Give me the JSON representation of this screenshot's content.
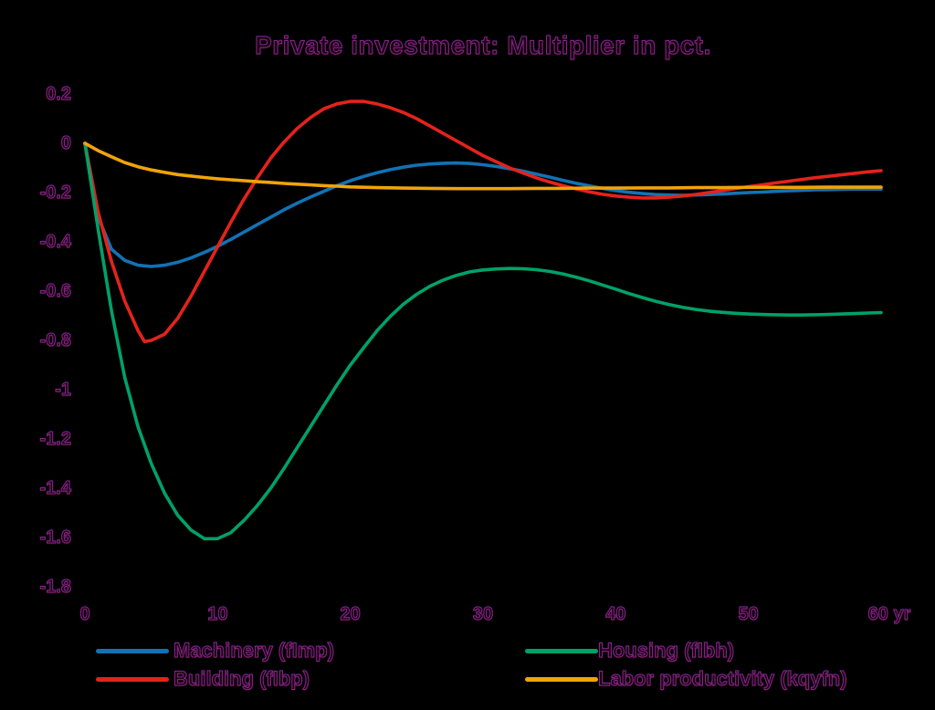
{
  "chart_data": {
    "type": "line",
    "title": "Private investment: Multiplier in pct.",
    "xlabel": "",
    "ylabel": "",
    "x_unit": "yr",
    "xlim": [
      0,
      60
    ],
    "ylim": [
      -1.8,
      0.2
    ],
    "x_ticks": [
      0,
      10,
      20,
      30,
      40,
      50,
      60
    ],
    "y_ticks": [
      0.2,
      0,
      -0.2,
      -0.4,
      -0.6,
      -0.8,
      -1,
      -1.2,
      -1.4,
      -1.6,
      -1.8
    ],
    "grid": false,
    "background": "#000000",
    "text_outline_color": "#872285",
    "legend_position": "bottom-two-columns",
    "series": [
      {
        "id": "machinery-fimp",
        "name": "Machinery (fImp)",
        "color": "#1272b4",
        "points": [
          [
            0,
            0
          ],
          [
            1,
            -0.3
          ],
          [
            2,
            -0.43
          ],
          [
            3,
            -0.475
          ],
          [
            4,
            -0.495
          ],
          [
            5,
            -0.5
          ],
          [
            6,
            -0.495
          ],
          [
            7,
            -0.483
          ],
          [
            8,
            -0.465
          ],
          [
            9,
            -0.443
          ],
          [
            10,
            -0.418
          ],
          [
            11,
            -0.39
          ],
          [
            12,
            -0.36
          ],
          [
            13,
            -0.33
          ],
          [
            14,
            -0.3
          ],
          [
            15,
            -0.27
          ],
          [
            16,
            -0.243
          ],
          [
            17,
            -0.218
          ],
          [
            18,
            -0.195
          ],
          [
            19,
            -0.172
          ],
          [
            20,
            -0.152
          ],
          [
            21,
            -0.135
          ],
          [
            22,
            -0.12
          ],
          [
            23,
            -0.107
          ],
          [
            24,
            -0.097
          ],
          [
            25,
            -0.089
          ],
          [
            26,
            -0.084
          ],
          [
            27,
            -0.081
          ],
          [
            28,
            -0.08
          ],
          [
            29,
            -0.082
          ],
          [
            30,
            -0.087
          ],
          [
            31,
            -0.094
          ],
          [
            32,
            -0.103
          ],
          [
            33,
            -0.113
          ],
          [
            34,
            -0.125
          ],
          [
            35,
            -0.137
          ],
          [
            36,
            -0.15
          ],
          [
            37,
            -0.162
          ],
          [
            38,
            -0.173
          ],
          [
            39,
            -0.183
          ],
          [
            40,
            -0.192
          ],
          [
            41,
            -0.199
          ],
          [
            42,
            -0.204
          ],
          [
            43,
            -0.208
          ],
          [
            44,
            -0.21
          ],
          [
            45,
            -0.211
          ],
          [
            46,
            -0.21
          ],
          [
            47,
            -0.208
          ],
          [
            48,
            -0.206
          ],
          [
            49,
            -0.203
          ],
          [
            50,
            -0.2
          ],
          [
            51,
            -0.198
          ],
          [
            52,
            -0.195
          ],
          [
            53,
            -0.193
          ],
          [
            54,
            -0.191
          ],
          [
            55,
            -0.189
          ],
          [
            56,
            -0.188
          ],
          [
            57,
            -0.187
          ],
          [
            58,
            -0.186
          ],
          [
            59,
            -0.186
          ],
          [
            60,
            -0.186
          ]
        ]
      },
      {
        "id": "building-fibp",
        "name": "Building (fIbp)",
        "color": "#e3231b",
        "points": [
          [
            0,
            0
          ],
          [
            1,
            -0.28
          ],
          [
            2,
            -0.48
          ],
          [
            3,
            -0.64
          ],
          [
            4,
            -0.76
          ],
          [
            4.5,
            -0.805
          ],
          [
            5,
            -0.8
          ],
          [
            6,
            -0.775
          ],
          [
            7,
            -0.71
          ],
          [
            8,
            -0.62
          ],
          [
            9,
            -0.52
          ],
          [
            10,
            -0.42
          ],
          [
            11,
            -0.32
          ],
          [
            12,
            -0.225
          ],
          [
            13,
            -0.14
          ],
          [
            14,
            -0.06
          ],
          [
            15,
            0.005
          ],
          [
            16,
            0.06
          ],
          [
            17,
            0.105
          ],
          [
            18,
            0.14
          ],
          [
            19,
            0.16
          ],
          [
            20,
            0.17
          ],
          [
            21,
            0.17
          ],
          [
            22,
            0.16
          ],
          [
            23,
            0.145
          ],
          [
            24,
            0.125
          ],
          [
            25,
            0.1
          ],
          [
            26,
            0.07
          ],
          [
            27,
            0.04
          ],
          [
            28,
            0.01
          ],
          [
            29,
            -0.02
          ],
          [
            30,
            -0.05
          ],
          [
            31,
            -0.075
          ],
          [
            32,
            -0.1
          ],
          [
            33,
            -0.12
          ],
          [
            34,
            -0.14
          ],
          [
            35,
            -0.157
          ],
          [
            36,
            -0.172
          ],
          [
            37,
            -0.185
          ],
          [
            38,
            -0.197
          ],
          [
            39,
            -0.207
          ],
          [
            40,
            -0.214
          ],
          [
            41,
            -0.219
          ],
          [
            42,
            -0.222
          ],
          [
            43,
            -0.222
          ],
          [
            44,
            -0.219
          ],
          [
            45,
            -0.214
          ],
          [
            46,
            -0.208
          ],
          [
            47,
            -0.2
          ],
          [
            48,
            -0.192
          ],
          [
            49,
            -0.184
          ],
          [
            50,
            -0.176
          ],
          [
            51,
            -0.169
          ],
          [
            52,
            -0.161
          ],
          [
            53,
            -0.154
          ],
          [
            54,
            -0.147
          ],
          [
            55,
            -0.14
          ],
          [
            56,
            -0.134
          ],
          [
            57,
            -0.128
          ],
          [
            58,
            -0.122
          ],
          [
            59,
            -0.116
          ],
          [
            60,
            -0.111
          ]
        ]
      },
      {
        "id": "housing-fibh",
        "name": "Housing (fIbh)",
        "color": "#00a169",
        "points": [
          [
            0,
            0
          ],
          [
            1,
            -0.35
          ],
          [
            2,
            -0.68
          ],
          [
            3,
            -0.95
          ],
          [
            4,
            -1.15
          ],
          [
            5,
            -1.3
          ],
          [
            6,
            -1.42
          ],
          [
            7,
            -1.51
          ],
          [
            8,
            -1.57
          ],
          [
            9,
            -1.605
          ],
          [
            10,
            -1.605
          ],
          [
            11,
            -1.58
          ],
          [
            12,
            -1.53
          ],
          [
            13,
            -1.47
          ],
          [
            14,
            -1.4
          ],
          [
            15,
            -1.32
          ],
          [
            16,
            -1.235
          ],
          [
            17,
            -1.15
          ],
          [
            18,
            -1.065
          ],
          [
            19,
            -0.98
          ],
          [
            20,
            -0.9
          ],
          [
            21,
            -0.83
          ],
          [
            22,
            -0.762
          ],
          [
            23,
            -0.703
          ],
          [
            24,
            -0.653
          ],
          [
            25,
            -0.613
          ],
          [
            26,
            -0.58
          ],
          [
            27,
            -0.555
          ],
          [
            28,
            -0.536
          ],
          [
            29,
            -0.522
          ],
          [
            30,
            -0.514
          ],
          [
            31,
            -0.51
          ],
          [
            32,
            -0.508
          ],
          [
            33,
            -0.509
          ],
          [
            34,
            -0.513
          ],
          [
            35,
            -0.52
          ],
          [
            36,
            -0.53
          ],
          [
            37,
            -0.543
          ],
          [
            38,
            -0.558
          ],
          [
            39,
            -0.575
          ],
          [
            40,
            -0.592
          ],
          [
            41,
            -0.61
          ],
          [
            42,
            -0.626
          ],
          [
            43,
            -0.641
          ],
          [
            44,
            -0.654
          ],
          [
            45,
            -0.665
          ],
          [
            46,
            -0.674
          ],
          [
            47,
            -0.681
          ],
          [
            48,
            -0.686
          ],
          [
            49,
            -0.69
          ],
          [
            50,
            -0.693
          ],
          [
            51,
            -0.695
          ],
          [
            52,
            -0.696
          ],
          [
            53,
            -0.697
          ],
          [
            54,
            -0.697
          ],
          [
            55,
            -0.696
          ],
          [
            56,
            -0.695
          ],
          [
            57,
            -0.693
          ],
          [
            58,
            -0.691
          ],
          [
            59,
            -0.689
          ],
          [
            60,
            -0.687
          ]
        ]
      },
      {
        "id": "labor-productivity-kqyfn",
        "name": "Labor productivity (kqyfn)",
        "color": "#f0a30a",
        "points": [
          [
            0,
            0
          ],
          [
            1,
            -0.03
          ],
          [
            2,
            -0.055
          ],
          [
            3,
            -0.078
          ],
          [
            4,
            -0.095
          ],
          [
            5,
            -0.108
          ],
          [
            6,
            -0.118
          ],
          [
            7,
            -0.127
          ],
          [
            8,
            -0.133
          ],
          [
            9,
            -0.139
          ],
          [
            10,
            -0.144
          ],
          [
            11,
            -0.148
          ],
          [
            12,
            -0.152
          ],
          [
            13,
            -0.156
          ],
          [
            14,
            -0.159
          ],
          [
            15,
            -0.163
          ],
          [
            16,
            -0.166
          ],
          [
            17,
            -0.169
          ],
          [
            18,
            -0.172
          ],
          [
            19,
            -0.174
          ],
          [
            20,
            -0.177
          ],
          [
            22,
            -0.18
          ],
          [
            24,
            -0.182
          ],
          [
            26,
            -0.183
          ],
          [
            28,
            -0.184
          ],
          [
            30,
            -0.184
          ],
          [
            32,
            -0.184
          ],
          [
            34,
            -0.183
          ],
          [
            36,
            -0.183
          ],
          [
            38,
            -0.182
          ],
          [
            40,
            -0.182
          ],
          [
            42,
            -0.181
          ],
          [
            44,
            -0.181
          ],
          [
            46,
            -0.18
          ],
          [
            48,
            -0.18
          ],
          [
            50,
            -0.179
          ],
          [
            52,
            -0.179
          ],
          [
            54,
            -0.179
          ],
          [
            56,
            -0.178
          ],
          [
            58,
            -0.178
          ],
          [
            60,
            -0.178
          ]
        ]
      }
    ]
  },
  "legend": {
    "items": [
      {
        "label": "Machinery (fImp)",
        "color": "#1272b4",
        "series_id": "machinery-fimp"
      },
      {
        "label": "Building (fIbp)",
        "color": "#e3231b",
        "series_id": "building-fibp"
      },
      {
        "label": "Housing (fIbh)",
        "color": "#00a169",
        "series_id": "housing-fibh"
      },
      {
        "label": "Labor productivity (kqyfn)",
        "color": "#f0a30a",
        "series_id": "labor-productivity-kqyfn"
      }
    ]
  }
}
